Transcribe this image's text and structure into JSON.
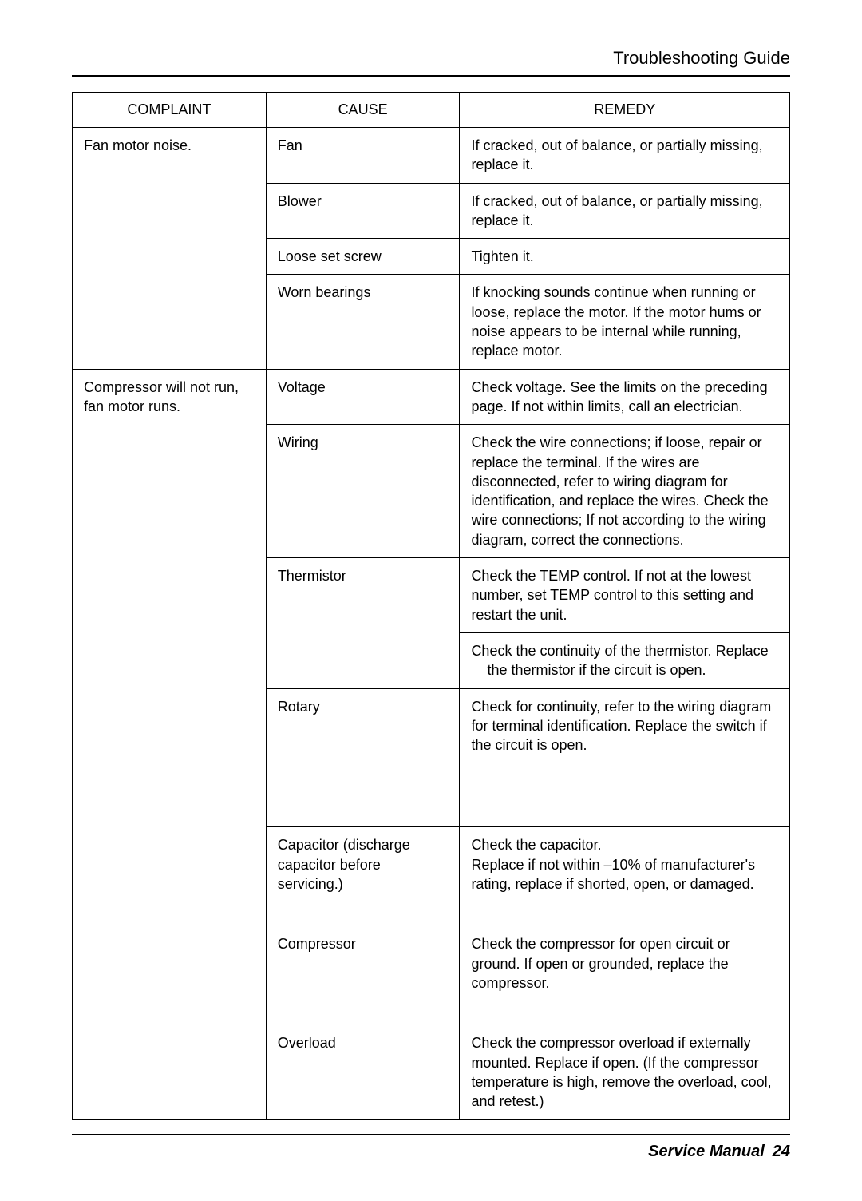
{
  "header": {
    "title": "Troubleshooting Guide"
  },
  "table": {
    "columns": [
      "COMPLAINT",
      "CAUSE",
      "REMEDY"
    ],
    "groups": [
      {
        "complaint": "Fan motor noise.",
        "rows": [
          {
            "cause": "Fan",
            "remedy": "If cracked, out of balance, or partially missing, replace it."
          },
          {
            "cause": "Blower",
            "remedy": "If cracked, out of balance, or partially missing, replace it."
          },
          {
            "cause": "Loose set screw",
            "remedy": "Tighten it."
          },
          {
            "cause": "Worn bearings",
            "remedy": "If knocking sounds continue when running or loose, replace the motor. If the motor hums or noise appears to be internal while running, replace motor."
          }
        ]
      },
      {
        "complaint": "Compressor will not run, fan motor runs.",
        "rows": [
          {
            "cause": "Voltage",
            "remedy": "Check voltage. See the limits on the preceding page. If not within limits, call an electrician."
          },
          {
            "cause": "Wiring",
            "remedy": "Check the wire connections; if loose, repair or replace the terminal. If the wires are disconnected, refer to wiring diagram for identification, and replace the wires. Check the wire connections; If not according to the wiring diagram, correct the connections."
          },
          {
            "cause": "Thermistor",
            "remedy": "Check the TEMP control. If not at the lowest number, set TEMP control to this setting and restart the unit.",
            "causeRowspan": 2
          },
          {
            "cause": null,
            "remedy_line1": "Check the continuity of the thermistor. Replace",
            "remedy_line2": "the thermistor if the circuit is open."
          },
          {
            "cause": "Rotary",
            "remedy": "Check for continuity, refer to the wiring diagram for terminal identification. Replace the switch if the circuit is open.",
            "tall": "tall-rotary"
          },
          {
            "cause": "Capacitor (discharge capacitor before servicing.)",
            "remedy_line1": "Check the capacitor.",
            "remedy_line2full": "Replace if not within –10% of manufacturer's rating, replace if shorted, open, or damaged.",
            "tall": "tall-cap"
          },
          {
            "cause": "Compressor",
            "remedy": "Check the compressor for open circuit or ground. If open or grounded, replace the compressor.",
            "tall": "tall-comp"
          },
          {
            "cause": "Overload",
            "remedy": "Check the compressor overload if externally mounted. Replace if open. (If the compressor temperature is high, remove the overload, cool, and retest.)"
          }
        ]
      }
    ]
  },
  "footer": {
    "label": "Service Manual",
    "page": "24"
  }
}
